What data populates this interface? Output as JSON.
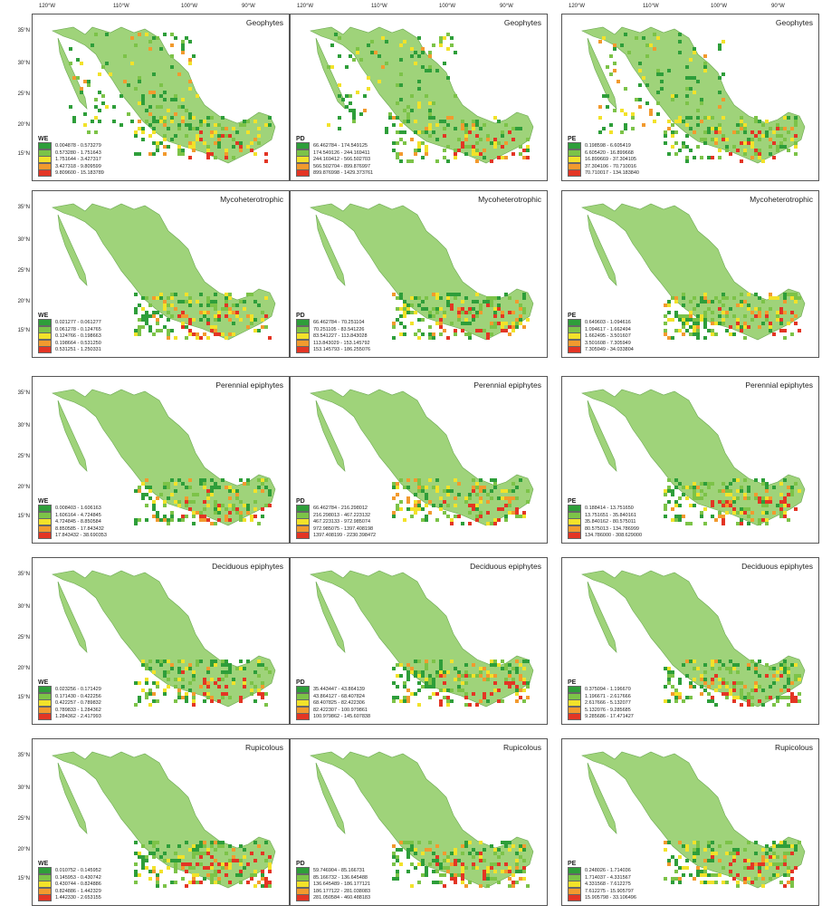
{
  "axes": {
    "lon_labels": [
      "120°W",
      "110°W",
      "100°W",
      "90°W"
    ],
    "lat_labels": [
      "35°N",
      "30°N",
      "25°N",
      "20°N",
      "15°N"
    ]
  },
  "colors": {
    "class1": "#2e9e3a",
    "class2": "#7cc348",
    "class3": "#f2e22a",
    "class4": "#f29a2e",
    "class5": "#e33524",
    "land": "#9fd37a",
    "land_stroke": "#6aa84f"
  },
  "rows": [
    {
      "group": "Geophytes",
      "panels": [
        {
          "metric": "WE",
          "legend": [
            "0.004878 - 0.573279",
            "0.573280 - 1.751643",
            "1.751644 - 3.427317",
            "3.427318 - 9.809599",
            "9.809600 - 15.183789"
          ]
        },
        {
          "metric": "PD",
          "legend": [
            "66.462784 - 174.549125",
            "174.549126 - 244.169411",
            "244.169412 - 566.502703",
            "566.502704 - 899.876997",
            "899.876998 - 1429.373761"
          ]
        },
        {
          "metric": "PE",
          "legend": [
            "0.198598 - 6.605419",
            "6.605420 - 16.899668",
            "16.899669 - 37.304105",
            "37.304106 - 70.710016",
            "70.710017 - 134.183840"
          ]
        }
      ]
    },
    {
      "group": "Mycoheterotrophic",
      "panels": [
        {
          "metric": "WE",
          "legend": [
            "0.021277 - 0.061277",
            "0.061278 - 0.124765",
            "0.124766 - 0.198663",
            "0.198664 - 0.531250",
            "0.531251 - 1.250331"
          ]
        },
        {
          "metric": "PD",
          "legend": [
            "66.462784 - 70.251104",
            "70.251105 - 83.541226",
            "83.541227 - 113.843028",
            "113.843029 - 153.145792",
            "153.145793 - 186.255076"
          ]
        },
        {
          "metric": "PE",
          "legend": [
            "0.649603 - 1.094616",
            "1.094617 - 1.662494",
            "1.662495 - 3.501607",
            "3.501608 - 7.305949",
            "7.305949 - 34.033804"
          ]
        }
      ]
    },
    {
      "group": "Perennial epiphytes",
      "panels": [
        {
          "metric": "WE",
          "legend": [
            "0.008403 - 1.606163",
            "1.606164 - 4.724845",
            "4.724845 - 8.850584",
            "8.850585 - 17.843432",
            "17.843432 - 38.690353"
          ]
        },
        {
          "metric": "PD",
          "legend": [
            "66.462784 - 216.298012",
            "216.298013 - 467.223132",
            "467.223133 - 972.985074",
            "972.985075 - 1397.408198",
            "1397.408199 - 2230.398472"
          ]
        },
        {
          "metric": "PE",
          "legend": [
            "0.188414 - 13.751650",
            "13.751651 - 35.840161",
            "35.840162 - 80.575011",
            "80.575013 - 134.786999",
            "134.786000 - 308.629000"
          ]
        }
      ]
    },
    {
      "group": "Deciduous epiphytes",
      "panels": [
        {
          "metric": "WE",
          "legend": [
            "0.023256 - 0.171429",
            "0.171430 - 0.422256",
            "0.422257 - 0.789832",
            "0.789833 - 1.284362",
            "1.284362 - 2.417993"
          ]
        },
        {
          "metric": "PD",
          "legend": [
            "35.443447 - 43.864139",
            "43.864127 - 68.407824",
            "68.407825 - 82.422306",
            "82.422307 - 100.979861",
            "100.979862 - 145.607838"
          ]
        },
        {
          "metric": "PE",
          "legend": [
            "0.375094 - 1.196670",
            "1.196671 - 2.617666",
            "2.617666 - 5.132077",
            "5.132076 - 9.285685",
            "9.285686 - 17.471427"
          ]
        }
      ]
    },
    {
      "group": "Rupicolous",
      "panels": [
        {
          "metric": "WE",
          "legend": [
            "0.010752 - 0.145952",
            "0.145953 - 0.430742",
            "0.430744 - 0.824886",
            "0.824886 - 1.442329",
            "1.442330 - 2.653155"
          ]
        },
        {
          "metric": "PD",
          "legend": [
            "59.746904 - 85.166731",
            "85.166732 - 136.645488",
            "136.645489 - 186.177121",
            "186.177122 - 281.038083",
            "281.050584 - 460.488183"
          ]
        },
        {
          "metric": "PE",
          "legend": [
            "0.248026 - 1.714036",
            "1.714037 - 4.331567",
            "4.331568 - 7.612275",
            "7.612275 - 15.905797",
            "15.905798 - 33.106496"
          ]
        }
      ]
    }
  ]
}
